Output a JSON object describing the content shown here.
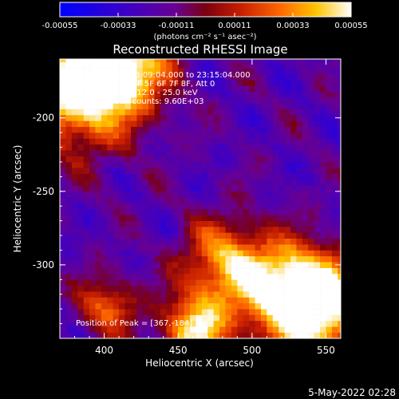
{
  "chart_data": {
    "type": "heatmap",
    "title": "Reconstructed RHESSI Image",
    "xlabel": "Heliocentric X (arcsec)",
    "ylabel": "Heliocentric Y (arcsec)",
    "xlim": [
      370,
      560
    ],
    "ylim": [
      -350,
      -160
    ],
    "x_ticks": [
      400,
      450,
      500,
      550
    ],
    "y_ticks": [
      -200,
      -250,
      -300
    ],
    "colorbar": {
      "range": [
        -0.00055,
        0.00055
      ],
      "tick_values": [
        -0.00055,
        -0.00033,
        -0.00011,
        0.00011,
        0.00033,
        0.00055
      ],
      "tick_labels": [
        "-0.00055",
        "-0.00033",
        "-0.00011",
        "0.00011",
        "0.00033",
        "0.00055"
      ],
      "unit_label": "(photons cm⁻² s⁻¹ asec⁻²)",
      "colors": [
        "#0000ff",
        "#5a00a0",
        "#8a0000",
        "#ff5a00",
        "#ffd000",
        "#ffffff"
      ]
    },
    "annotations": [
      "17-Nov-2004 23:09:04.000 to 23:15:04.000",
      "Detectors: 3F 4F 5F 6F 7F 8F, Att 0",
      "Energy Range: 12.0 - 25.0 keV",
      "Clean     Total counts: 9.60E+03"
    ],
    "peak_label": "Position of Peak = [367,-184]",
    "peak": {
      "x": 367,
      "y": -184
    },
    "bright_sources": [
      {
        "x": 380,
        "y": -180,
        "level": 1.0,
        "spread": 28
      },
      {
        "x": 410,
        "y": -165,
        "level": 0.8,
        "spread": 22
      },
      {
        "x": 480,
        "y": -300,
        "level": 0.7,
        "spread": 20
      },
      {
        "x": 520,
        "y": -320,
        "level": 0.75,
        "spread": 22
      },
      {
        "x": 545,
        "y": -330,
        "level": 1.0,
        "spread": 24
      },
      {
        "x": 460,
        "y": -345,
        "level": 0.85,
        "spread": 16
      },
      {
        "x": 400,
        "y": -330,
        "level": 0.55,
        "spread": 14
      }
    ],
    "background_level": -0.35
  },
  "footer": {
    "timestamp": "5-May-2022 02:28"
  }
}
